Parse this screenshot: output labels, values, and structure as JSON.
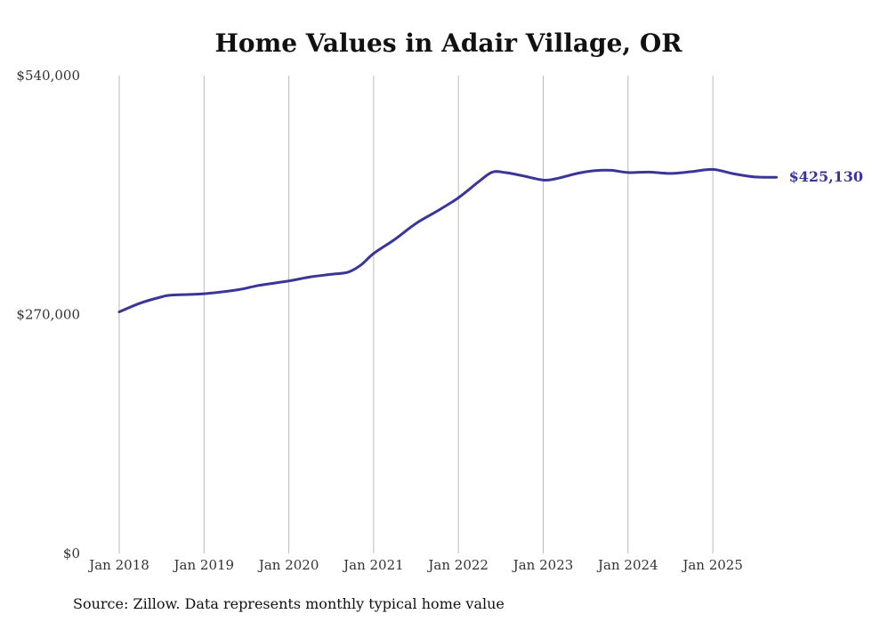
{
  "chart_data": {
    "type": "line",
    "title": "Home Values in Adair Village, OR",
    "xlabel": "",
    "ylabel": "",
    "ylim": [
      0,
      540000
    ],
    "y_ticks": [
      0,
      270000,
      540000
    ],
    "y_tick_labels": [
      "$0",
      "$270,000",
      "$540,000"
    ],
    "x_ticks": [
      2018,
      2019,
      2020,
      2021,
      2022,
      2023,
      2024,
      2025
    ],
    "x_tick_labels": [
      "Jan 2018",
      "Jan 2019",
      "Jan 2020",
      "Jan 2021",
      "Jan 2022",
      "Jan 2023",
      "Jan 2024",
      "Jan 2025"
    ],
    "grid": "vertical",
    "series": [
      {
        "name": "Typical home value",
        "color": "#3a3598",
        "x": [
          2018.0,
          2018.25,
          2018.5,
          2018.62,
          2019.0,
          2019.4,
          2019.65,
          2020.0,
          2020.25,
          2020.5,
          2020.7,
          2020.85,
          2021.0,
          2021.25,
          2021.5,
          2021.75,
          2022.0,
          2022.25,
          2022.4,
          2022.55,
          2022.75,
          2023.0,
          2023.15,
          2023.4,
          2023.6,
          2023.8,
          2024.0,
          2024.25,
          2024.5,
          2024.75,
          2025.0,
          2025.25,
          2025.5,
          2025.75
        ],
        "values": [
          273000,
          283000,
          290000,
          292000,
          293500,
          298000,
          303000,
          308000,
          312500,
          315500,
          318000,
          326000,
          339000,
          355000,
          373000,
          387000,
          402000,
          421000,
          431000,
          430500,
          427000,
          422000,
          423500,
          429500,
          432500,
          433000,
          430500,
          431000,
          429500,
          431500,
          434000,
          429000,
          425500,
          425130
        ]
      }
    ],
    "end_label": "$425,130"
  },
  "source": "Source: Zillow. Data represents monthly typical home value"
}
